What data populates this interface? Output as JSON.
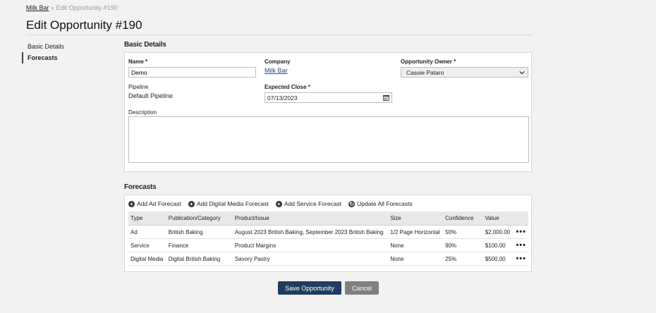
{
  "breadcrumb": {
    "parent": "Milk Bar",
    "sep": "»",
    "current": "Edit Opportunity #190"
  },
  "page_title": "Edit Opportunity #190",
  "sidenav": [
    {
      "label": "Basic Details",
      "active": false
    },
    {
      "label": "Forecasts",
      "active": true
    }
  ],
  "basic": {
    "title": "Basic Details",
    "name_label": "Name *",
    "name_value": "Demo",
    "company_label": "Company",
    "company_value": "Milk Bar",
    "owner_label": "Opportunity Owner *",
    "owner_value": "Cassie Pataro",
    "pipeline_label": "Pipeline",
    "pipeline_value": "Default Pipeline",
    "close_label": "Expected Close *",
    "close_value": "07/13/2023",
    "description_label": "Description",
    "description_value": ""
  },
  "forecasts": {
    "title": "Forecasts",
    "actions": [
      "Add Ad Forecast",
      "Add Digital Media Forecast",
      "Add Service Forecast",
      "Update All Forecasts"
    ],
    "headers": [
      "Type",
      "Publication/Category",
      "Product/Issue",
      "Size",
      "Confidence",
      "Value"
    ],
    "rows": [
      {
        "type": "Ad",
        "pub": "British Baking",
        "product": "August 2023 British Baking, September 2023 British Baking",
        "size": "1/2 Page Horizontal",
        "confidence": "50%",
        "value": "$2,000.00"
      },
      {
        "type": "Service",
        "pub": "Finance",
        "product": "Product Margins",
        "size": "None",
        "confidence": "90%",
        "value": "$100.00"
      },
      {
        "type": "Digital Media",
        "pub": "Digital British Baking",
        "product": "Savory Pastry",
        "size": "None",
        "confidence": "25%",
        "value": "$500.00"
      }
    ],
    "row_menu": "•••"
  },
  "buttons": {
    "save": "Save Opportunity",
    "cancel": "Cancel"
  },
  "colors": {
    "primary": "#1e3e5f",
    "secondary": "#808080",
    "link": "#1f4e79"
  },
  "icons": {
    "add": "plus-circle-icon",
    "update": "refresh-circle-icon",
    "calendar": "calendar-icon",
    "select": "chevron-down-icon"
  }
}
